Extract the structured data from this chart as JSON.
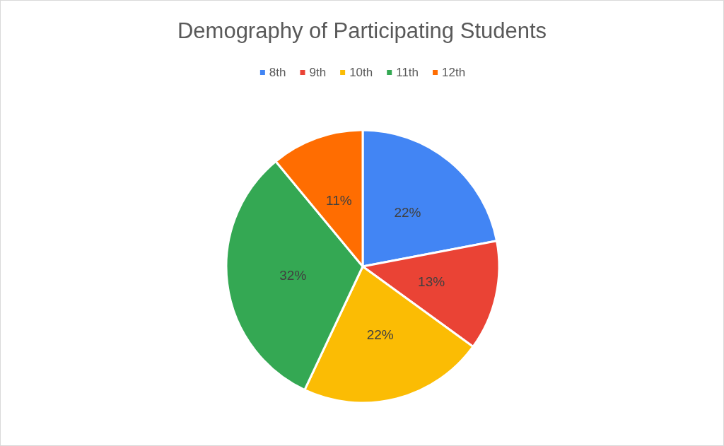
{
  "chart_data": {
    "type": "pie",
    "title": "Demography of Participating Students",
    "categories": [
      "8th",
      "9th",
      "10th",
      "11th",
      "12th"
    ],
    "values": [
      22,
      13,
      22,
      32,
      11
    ],
    "colors": [
      "#4285f4",
      "#ea4335",
      "#fbbc04",
      "#34a853",
      "#ff6d01"
    ],
    "value_labels": [
      "22%",
      "13%",
      "22%",
      "32%",
      "11%"
    ],
    "legend": "top"
  }
}
